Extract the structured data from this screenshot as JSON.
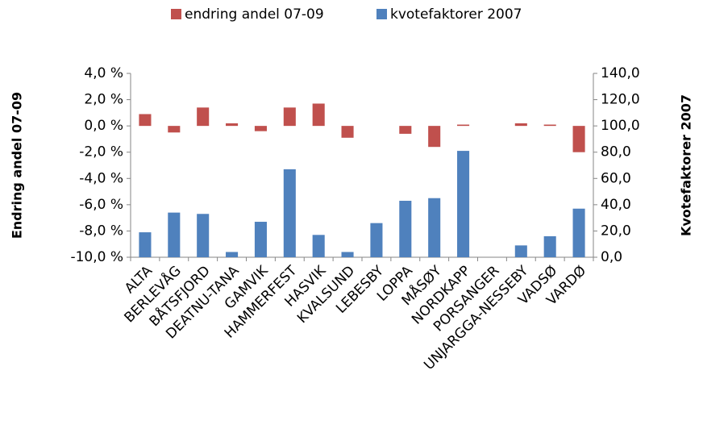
{
  "chart_data": {
    "type": "bar",
    "categories": [
      "ALTA",
      "BERLEVÅG",
      "BÅTSFJORD",
      "DEATNU-TANA",
      "GAMVIK",
      "HAMMERFEST",
      "HASVIK",
      "KVALSUND",
      "LEBESBY",
      "LOPPA",
      "MÅSØY",
      "NORDKAPP",
      "PORSANGER",
      "UNJARGGA-NESSEBY",
      "VADSØ",
      "VARDØ"
    ],
    "series": [
      {
        "name": "endring andel 07-09",
        "color": "#c0504d",
        "axis": "y",
        "values": [
          0.9,
          -0.5,
          1.4,
          0.2,
          -0.4,
          1.4,
          1.7,
          -0.9,
          0,
          -0.6,
          -1.6,
          0.1,
          0,
          0.2,
          0.1,
          -2.0
        ]
      },
      {
        "name": "kvotefaktorer 2007",
        "color": "#4f81bd",
        "axis": "y2",
        "values": [
          19,
          34,
          33,
          4,
          27,
          67,
          17,
          4,
          26,
          43,
          45,
          81,
          0,
          9,
          16,
          37
        ]
      }
    ],
    "ylabel": "Endring andel 07-09",
    "y2label": "Kvotefaktorer 2007",
    "ylim": [
      -10,
      4
    ],
    "yticks": [
      {
        "value": -10,
        "label": "-10,0 %"
      },
      {
        "value": -8,
        "label": "-8,0 %"
      },
      {
        "value": -6,
        "label": "-6,0 %"
      },
      {
        "value": -4,
        "label": "-4,0 %"
      },
      {
        "value": -2,
        "label": "-2,0 %"
      },
      {
        "value": 0,
        "label": "0,0 %"
      },
      {
        "value": 2,
        "label": "2,0 %"
      },
      {
        "value": 4,
        "label": "4,0 %"
      }
    ],
    "y2lim": [
      0,
      140
    ],
    "y2ticks": [
      {
        "value": 0,
        "label": "0,0"
      },
      {
        "value": 20,
        "label": "20,0"
      },
      {
        "value": 40,
        "label": "40,0"
      },
      {
        "value": 60,
        "label": "60,0"
      },
      {
        "value": 80,
        "label": "80,0"
      },
      {
        "value": 100,
        "label": "100,0"
      },
      {
        "value": 120,
        "label": "120,0"
      },
      {
        "value": 140,
        "label": "140,0"
      }
    ],
    "legend": "top",
    "grid": false
  }
}
